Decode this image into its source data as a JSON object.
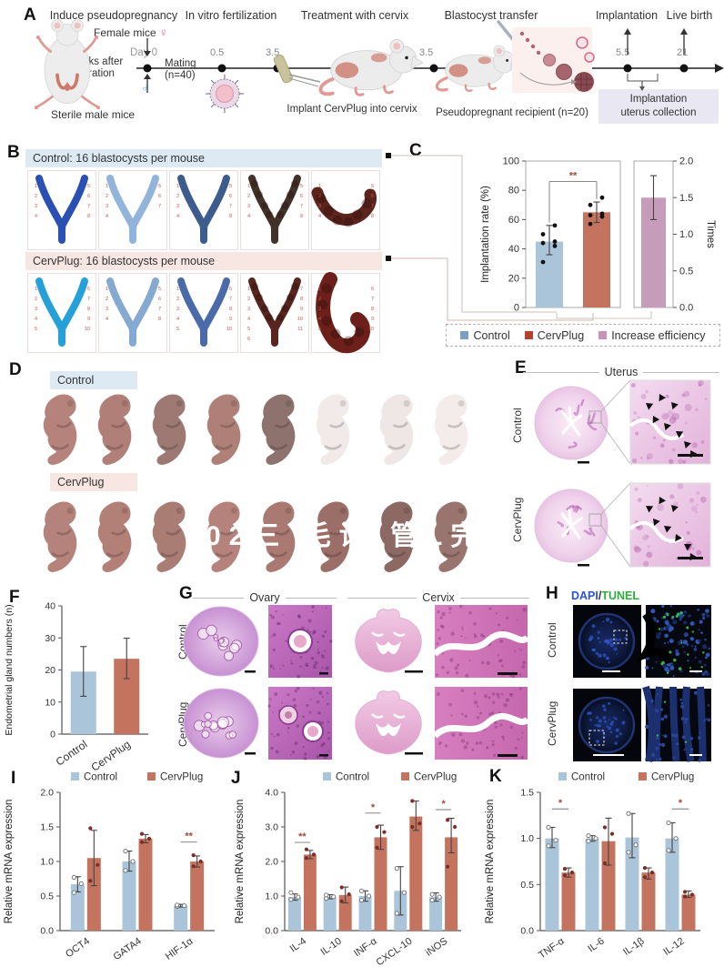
{
  "panel_a": {
    "label": "A",
    "titles": {
      "step1": "Induce pseudopregnancy",
      "step2": "In vitro fertilization",
      "step3": "Treatment with cervix",
      "step4": "Blastocyst transfer",
      "step5": "Implantation",
      "step6": "Live birth"
    },
    "female_mice": "Female mice",
    "female_symbol": "♀",
    "male_symbol": "♂",
    "day0": "Day 0",
    "castration_1": "2 weeks after",
    "castration_2": "castration",
    "mating_1": "Mating",
    "mating_2": "(n=40)",
    "sterile": "Sterile male mice",
    "ticks": [
      "0.5",
      "3.5",
      "3.5",
      "5.5",
      "21"
    ],
    "implant": "Implant CervPlug into cervix",
    "recipient": "Pseudopregnant recipient (n=20)",
    "collection_1": "Implantation",
    "collection_2": "uterus collection"
  },
  "panel_b": {
    "label": "B",
    "control_header": "Control: 16 blastocysts per mouse",
    "cervplug_header": "CervPlug: 16 blastocysts per mouse",
    "control_specimens": [
      {
        "color": "#2a50b4",
        "shape": "V",
        "sites": 8,
        "beads": false
      },
      {
        "color": "#93b4da",
        "shape": "V",
        "sites": 7,
        "beads": false
      },
      {
        "color": "#3d5c8e",
        "shape": "V",
        "sites": 8,
        "beads": false
      },
      {
        "color": "#42332a",
        "shape": "V",
        "sites": 8,
        "beads": true
      },
      {
        "color": "#5d241d",
        "shape": "H",
        "sites": 8,
        "beads": true
      }
    ],
    "cervplug_specimens": [
      {
        "color": "#26a0d8",
        "shape": "V",
        "sites": 10,
        "beads": false
      },
      {
        "color": "#85aad2",
        "shape": "V",
        "sites": 8,
        "beads": false
      },
      {
        "color": "#4a6aaa",
        "shape": "V",
        "sites": 10,
        "beads": false
      },
      {
        "color": "#58251f",
        "shape": "V",
        "sites": 11,
        "beads": true
      },
      {
        "color": "#6d201a",
        "shape": "H2",
        "sites": 10,
        "beads": true
      }
    ]
  },
  "panel_c": {
    "label": "C"
  },
  "panel_d": {
    "label": "D",
    "control": "Control",
    "cervplug": "CervPlug",
    "watermark": "02三 毛诊 管L完",
    "pup_colors_control": [
      "#b5837b",
      "#b07f77",
      "#9e7973",
      "#ae8078",
      "#8e726e",
      "#f2eae9",
      "#efe7e6",
      "#f4eceb"
    ],
    "pup_colors_cervplug": [
      "#b5837b",
      "#b28077",
      "#a97c74",
      "#b5837b",
      "#aa7971",
      "#9b6e67",
      "#8c6963",
      "#9a7570"
    ]
  },
  "panel_e": {
    "label": "E",
    "title": "Uterus",
    "rows": [
      "Control",
      "CervPlug"
    ]
  },
  "panel_f": {
    "label": "F"
  },
  "panel_g": {
    "label": "G",
    "col_titles": [
      "Ovary",
      "Cervix"
    ],
    "rows": [
      "Control",
      "CervPlug"
    ]
  },
  "panel_h": {
    "label": "H",
    "dapi": "DAPI",
    "slash": "/",
    "tunel": "TUNEL",
    "dapi_color": "#2952e0",
    "tunel_color": "#2fae3f",
    "rows": [
      "Control",
      "CervPlug"
    ]
  },
  "panel_i": {
    "label": "I"
  },
  "panel_j": {
    "label": "J"
  },
  "panel_k": {
    "label": "K"
  },
  "colors": {
    "control_bar": "#aac4da",
    "cervplug_bar": "#c4745e",
    "efficiency_bar": "#c79cbb",
    "control_band": "#ddeaf3",
    "cervplug_band": "#f8e6e3",
    "collection_box": "#e9e7f2"
  },
  "chart_data": [
    {
      "id": "C",
      "type": "bar",
      "ylabel": "Implantation rate (%)",
      "ylim": [
        0,
        100
      ],
      "yticks": [
        "0",
        "20",
        "40",
        "60",
        "80",
        "100"
      ],
      "categories": [
        "Control",
        "CervPlug"
      ],
      "series": [
        {
          "name": "Implantation rate",
          "colors": [
            "#aac4da",
            "#c4745e"
          ],
          "values": [
            45,
            65
          ],
          "err_lo": [
            36,
            58
          ],
          "err_hi": [
            56,
            72
          ],
          "points": [
            [
              31,
              42,
              44,
              45,
              50,
              56
            ],
            [
              57,
              62,
              63,
              64,
              70,
              75
            ]
          ]
        }
      ],
      "sig": [
        {
          "from": 0,
          "to": 1,
          "label": "**",
          "y": 86,
          "drop_a": 58,
          "drop_b": 74
        }
      ],
      "right": {
        "name": "Increase efficiency",
        "ylabel": "Times",
        "ylim": [
          0,
          2
        ],
        "yticks": [
          "0.0",
          "0.5",
          "1.0",
          "1.5",
          "2.0"
        ],
        "value": 1.5,
        "err_lo": 1.2,
        "err_hi": 1.8,
        "color": "#c79cbb"
      },
      "legend": [
        {
          "label": "Control",
          "color": "#7d9fc2"
        },
        {
          "label": "CervPlug",
          "color": "#b5402c"
        },
        {
          "label": "Increase efficiency",
          "color": "#c793b8"
        }
      ]
    },
    {
      "id": "F",
      "type": "bar",
      "ylabel": "Endometrial gland numbers (n)",
      "ylim": [
        0,
        40
      ],
      "yticks": [
        "0",
        "10",
        "20",
        "30",
        "40"
      ],
      "categories": [
        "Control",
        "CervPlug"
      ],
      "series": [
        {
          "name": "Gland numbers",
          "colors": [
            "#aac4da",
            "#c4745e"
          ],
          "values": [
            19.5,
            23.5
          ],
          "err_lo": [
            11.8,
            17.3
          ],
          "err_hi": [
            27.3,
            29.9
          ]
        }
      ],
      "sig": []
    },
    {
      "id": "I",
      "type": "grouped_bar",
      "ylabel": "Relative mRNA expression",
      "ylim": [
        0,
        2
      ],
      "yticks": [
        "0.0",
        "0.5",
        "1.0",
        "1.5",
        "2.0"
      ],
      "categories": [
        "OCT4",
        "GATA4",
        "HIF-1α"
      ],
      "series": [
        {
          "name": "Control",
          "color": "#aac4da",
          "values": [
            0.67,
            1.0,
            0.36
          ],
          "err_lo": [
            0.56,
            0.86,
            0.34
          ],
          "err_hi": [
            0.78,
            1.15,
            0.38
          ],
          "points": [
            [
              0.55,
              0.68,
              0.77
            ],
            [
              0.87,
              1.0,
              1.15
            ],
            [
              0.35,
              0.36,
              0.37
            ]
          ]
        },
        {
          "name": "CervPlug",
          "color": "#c4745e",
          "values": [
            1.05,
            1.33,
            1.0
          ],
          "err_lo": [
            0.65,
            1.27,
            0.92
          ],
          "err_hi": [
            1.45,
            1.39,
            1.08
          ],
          "points": [
            [
              0.72,
              0.95,
              1.48
            ],
            [
              1.28,
              1.33,
              1.4
            ],
            [
              0.93,
              1.0,
              1.09
            ]
          ]
        }
      ],
      "sig": [
        {
          "category_index": 2,
          "label": "**",
          "y": 1.28
        }
      ]
    },
    {
      "id": "J",
      "type": "grouped_bar",
      "ylabel": "Relative mRNA expression",
      "ylim": [
        0,
        4
      ],
      "yticks": [
        "0.0",
        "1.0",
        "2.0",
        "3.0",
        "4.0"
      ],
      "categories": [
        "IL-4",
        "IL-10",
        "INF-α",
        "CXCL-10",
        "iNOS"
      ],
      "series": [
        {
          "name": "Control",
          "color": "#aac4da",
          "values": [
            0.97,
            0.98,
            1.0,
            1.15,
            0.97
          ],
          "err_lo": [
            0.88,
            0.92,
            0.85,
            0.45,
            0.85
          ],
          "err_hi": [
            1.06,
            1.04,
            1.15,
            1.85,
            1.09
          ],
          "points": [
            [
              0.9,
              0.97,
              1.1
            ],
            [
              0.93,
              0.98,
              1.03
            ],
            [
              0.88,
              1.0,
              1.15
            ],
            [
              0.5,
              1.1,
              1.8
            ],
            [
              0.88,
              0.97,
              1.05
            ]
          ]
        },
        {
          "name": "CervPlug",
          "color": "#c4745e",
          "values": [
            2.2,
            1.03,
            2.7,
            3.3,
            2.7
          ],
          "err_lo": [
            2.08,
            0.8,
            2.35,
            2.9,
            2.25
          ],
          "err_hi": [
            2.32,
            1.26,
            3.05,
            3.75,
            3.25
          ],
          "points": [
            [
              2.1,
              2.2,
              2.35
            ],
            [
              0.85,
              1.05,
              1.25
            ],
            [
              2.4,
              2.85,
              3.0
            ],
            [
              3.0,
              3.1,
              3.75
            ],
            [
              1.85,
              3.0,
              3.2
            ]
          ]
        }
      ],
      "sig": [
        {
          "category_index": 0,
          "label": "**",
          "y": 2.55
        },
        {
          "category_index": 2,
          "label": "*",
          "y": 3.4
        },
        {
          "category_index": 4,
          "label": "*",
          "y": 3.5
        }
      ]
    },
    {
      "id": "K",
      "type": "grouped_bar",
      "ylabel": "Relative mRNA expression",
      "ylim": [
        0,
        1.5
      ],
      "yticks": [
        "0.0",
        "0.5",
        "1.0",
        "1.5"
      ],
      "categories": [
        "TNF-α",
        "IL-6",
        "IL-1β",
        "IL-12"
      ],
      "series": [
        {
          "name": "Control",
          "color": "#aac4da",
          "values": [
            1.0,
            1.0,
            1.01,
            1.0
          ],
          "err_lo": [
            0.9,
            0.97,
            0.79,
            0.85
          ],
          "err_hi": [
            1.12,
            1.03,
            1.27,
            1.17
          ],
          "points": [
            [
              0.92,
              0.98,
              1.12
            ],
            [
              0.97,
              1.0,
              1.03
            ],
            [
              0.85,
              0.93,
              1.27
            ],
            [
              0.87,
              1.0,
              1.17
            ]
          ]
        },
        {
          "name": "CervPlug",
          "color": "#c4745e",
          "values": [
            0.63,
            0.97,
            0.63,
            0.39
          ],
          "err_lo": [
            0.58,
            0.71,
            0.56,
            0.36
          ],
          "err_hi": [
            0.68,
            1.22,
            0.68,
            0.43
          ],
          "points": [
            [
              0.6,
              0.63,
              0.67
            ],
            [
              0.73,
              1.05,
              1.12
            ],
            [
              0.58,
              0.63,
              0.68
            ],
            [
              0.37,
              0.39,
              0.42
            ]
          ]
        }
      ],
      "sig": [
        {
          "category_index": 0,
          "label": "*",
          "y": 1.32
        },
        {
          "category_index": 3,
          "label": "*",
          "y": 1.32
        }
      ]
    }
  ]
}
